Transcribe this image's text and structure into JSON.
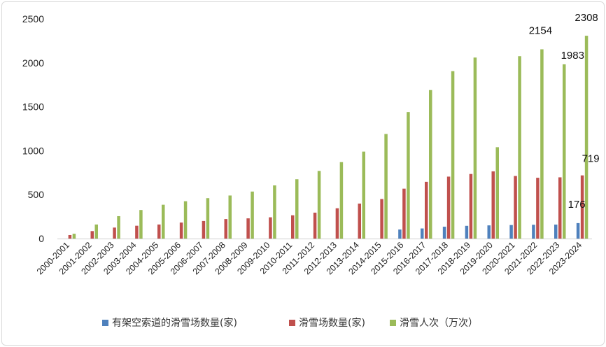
{
  "chart_data": {
    "type": "bar",
    "categories": [
      "2000-2001",
      "2001-2002",
      "2002-2003",
      "2003-2004",
      "2004-2005",
      "2005-2006",
      "2006-2007",
      "2007-2008",
      "2008-2009",
      "2009-2010",
      "2010-2011",
      "2011-2012",
      "2012-2013",
      "2013-2014",
      "2014-2015",
      "2015-2016",
      "2016-2017",
      "2017-2018",
      "2018-2019",
      "2019-2020",
      "2020-2021",
      "2021-2022",
      "2022-2023",
      "2023-2024"
    ],
    "series": [
      {
        "name": "有架空索道的滑雪场数量(家)",
        "color": "#4f81bd",
        "values": [
          null,
          null,
          null,
          null,
          null,
          null,
          null,
          null,
          null,
          null,
          null,
          null,
          null,
          null,
          null,
          103,
          115,
          135,
          145,
          150,
          154,
          157,
          159,
          176
        ]
      },
      {
        "name": "滑雪场数量(家)",
        "color": "#c0504d",
        "values": [
          40,
          85,
          125,
          146,
          160,
          182,
          200,
          222,
          230,
          242,
          265,
          295,
          345,
          398,
          450,
          568,
          646,
          705,
          735,
          765,
          712,
          692,
          697,
          719
        ]
      },
      {
        "name": "滑雪人次（万次）",
        "color": "#9bbb59",
        "values": [
          55,
          160,
          255,
          325,
          385,
          425,
          460,
          490,
          535,
          605,
          675,
          770,
          870,
          990,
          1190,
          1440,
          1690,
          1905,
          2060,
          1040,
          2076,
          2154,
          1983,
          2308
        ]
      }
    ],
    "ylim": [
      0,
      2500
    ],
    "yticks": [
      "0",
      "500",
      "1000",
      "1500",
      "2000",
      "2500"
    ],
    "data_labels": [
      {
        "series": 2,
        "index": 21,
        "text": "2154"
      },
      {
        "series": 2,
        "index": 22,
        "text": "1983"
      },
      {
        "series": 2,
        "index": 23,
        "text": "2308"
      },
      {
        "series": 1,
        "index": 23,
        "text": "719"
      },
      {
        "series": 0,
        "index": 23,
        "text": "176"
      }
    ],
    "legend_position": "bottom",
    "grid": false
  }
}
